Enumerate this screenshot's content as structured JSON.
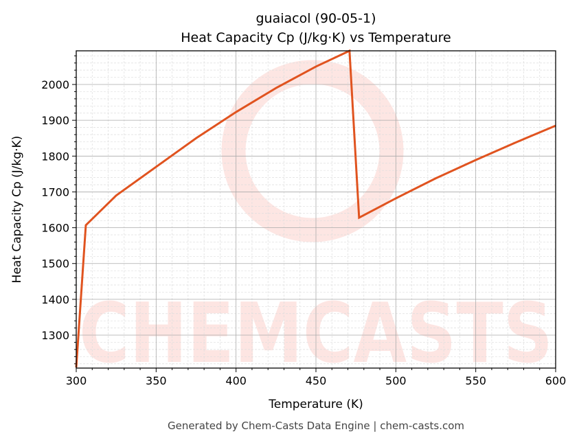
{
  "chart_data": {
    "type": "line",
    "title": "guaiacol (90-05-1)",
    "subtitle": "Heat Capacity Cp (J/kg·K) vs Temperature",
    "xlabel": "Temperature (K)",
    "ylabel": "Heat Capacity Cp (J/kg·K)",
    "xlim": [
      300,
      600
    ],
    "ylim": [
      1208,
      2094
    ],
    "xticks": [
      300,
      350,
      400,
      450,
      500,
      550,
      600
    ],
    "yticks": [
      1300,
      1400,
      1500,
      1600,
      1700,
      1800,
      1900,
      2000
    ],
    "grid": true,
    "series": [
      {
        "name": "Cp",
        "color": "#e0531f",
        "x": [
          300,
          306,
          325,
          350,
          375,
          400,
          425,
          450,
          471,
          477,
          500,
          525,
          550,
          575,
          600
        ],
        "y": [
          1210,
          1607,
          1690,
          1770,
          1850,
          1923,
          1990,
          2050,
          2094,
          1628,
          1682,
          1738,
          1789,
          1838,
          1885
        ]
      }
    ]
  },
  "watermark": "CHEMCASTS",
  "footer": "Generated by Chem-Casts Data Engine | chem-casts.com"
}
